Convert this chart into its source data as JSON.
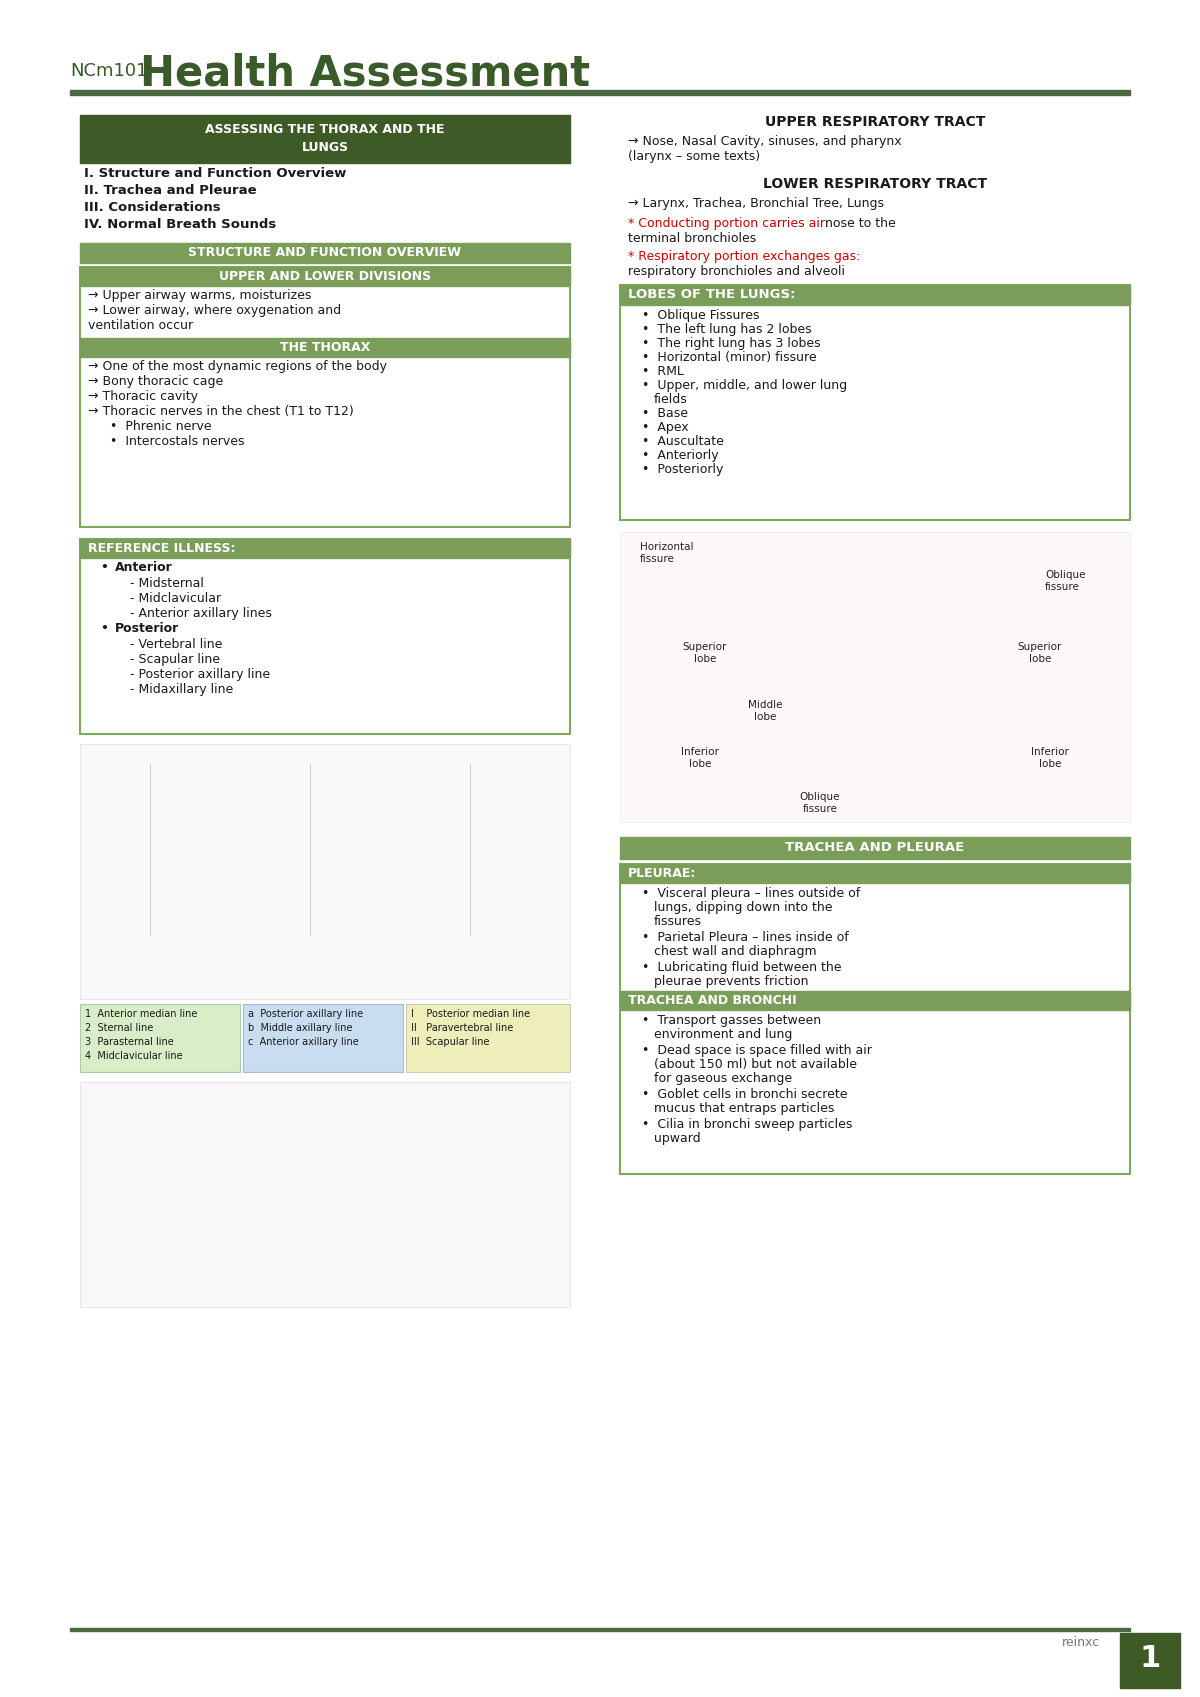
{
  "page_bg": "#ffffff",
  "header_line_color": "#4a6741",
  "title_ncm": "NCm101:",
  "title_main": "Health Assessment",
  "title_color": "#3a5a2a",
  "dark_green_bg": "#3d5a27",
  "dark_green_text": "#ffffff",
  "medium_green_bg": "#7a9e5a",
  "medium_green_text": "#ffffff",
  "box_border_color": "#7aaa5a",
  "text_color": "#1a1a1a",
  "red_text": "#cc0000",
  "footer_text_color": "#777777",
  "page_number": "1",
  "watermark": "reinxc",
  "toc_items": [
    "I. Structure and Function Overview",
    "II. Trachea and Pleurae",
    "III. Considerations",
    "IV. Normal Breath Sounds"
  ],
  "upper_lower_content": [
    "→ Upper airway warms, moisturizes",
    "→ Lower airway, where oxygenation and",
    "ventilation occur"
  ],
  "thorax_content_arrows": [
    "→ One of the most dynamic regions of the body",
    "→ Bony thoracic cage",
    "→ Thoracic cavity",
    "→ Thoracic nerves in the chest (T1 to T12)"
  ],
  "thorax_content_bullets": [
    "Phrenic nerve",
    "Intercostals nerves"
  ],
  "ref_illness_anterior": [
    "- Midsternal",
    "- Midclavicular",
    "- Anterior axillary lines"
  ],
  "ref_illness_posterior": [
    "- Vertebral line",
    "- Scapular line",
    "- Posterior axillary line",
    "- Midaxillary line"
  ],
  "upper_resp_content_lines": [
    "→ Nose, Nasal Cavity, sinuses, and pharynx",
    "(larynx – some texts)"
  ],
  "lower_resp_content": "→ Larynx, Trachea, Bronchial Tree, Lungs",
  "lobes_content": [
    "Oblique Fissures",
    "The left lung has 2 lobes",
    "The right lung has 3 lobes",
    "Horizontal (minor) fissure",
    "RML",
    "Upper, middle, and lower lung",
    "fields",
    "Base",
    "Apex",
    "Auscultate",
    "Anteriorly",
    "Posteriorly"
  ],
  "lobes_content_special": [
    5,
    6
  ],
  "pleurae_content": [
    [
      "Visceral pleura – lines outside of",
      "lungs, dipping down into the",
      "fissures"
    ],
    [
      "Parietal Pleura – lines inside of",
      "chest wall and diaphragm"
    ],
    [
      "Lubricating fluid between the",
      "pleurae prevents friction"
    ]
  ],
  "trachea_bronchi_content": [
    [
      "Transport gasses between",
      "environment and lung"
    ],
    [
      "Dead space is space filled with air",
      "(about 150 ml) but not available",
      "for gaseous exchange"
    ],
    [
      "Goblet cells in bronchi secrete",
      "mucus that entraps particles"
    ],
    [
      "Cilia in bronchi sweep particles",
      "upward"
    ]
  ],
  "legend_green": [
    "1  Anterior median line",
    "2  Sternal line",
    "3  Parasternal line",
    "4  Midclavicular line"
  ],
  "legend_blue": [
    "a  Posterior axillary line",
    "b  Middle axillary line",
    "c  Anterior axillary line"
  ],
  "legend_yellow": [
    "I    Posterior median line",
    "II   Paravertebral line",
    "III  Scapular line"
  ]
}
